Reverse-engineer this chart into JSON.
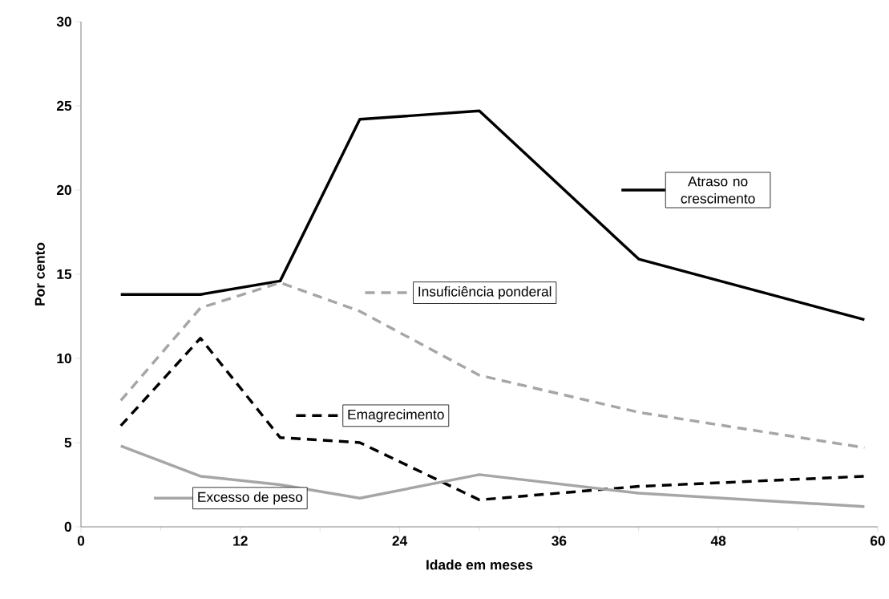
{
  "chart_data": {
    "type": "line",
    "xlabel": "Idade em meses",
    "ylabel": "Por cento",
    "x": [
      3,
      9,
      15,
      21,
      30,
      42,
      59
    ],
    "xlim": [
      0,
      60
    ],
    "xticks": [
      0,
      12,
      24,
      36,
      48,
      60
    ],
    "ylim": [
      0,
      30
    ],
    "yticks": [
      0,
      5,
      10,
      15,
      20,
      25,
      30
    ],
    "grid": false,
    "legend": "center",
    "series": [
      {
        "name": "Atraso no crescimento",
        "color": "#000000",
        "line_style": "solid",
        "values": [
          13.8,
          13.8,
          14.6,
          24.2,
          24.7,
          15.9,
          12.3
        ]
      },
      {
        "name": "Insuficiência ponderal",
        "color": "#a6a6a6",
        "line_style": "dashed",
        "values": [
          7.5,
          13.0,
          14.5,
          12.8,
          9.0,
          6.8,
          4.7
        ]
      },
      {
        "name": "Emagrecimento",
        "color": "#000000",
        "line_style": "dashed",
        "values": [
          6.0,
          11.2,
          5.3,
          5.0,
          1.6,
          2.4,
          3.0
        ]
      },
      {
        "name": "Excesso de peso",
        "color": "#a6a6a6",
        "line_style": "solid",
        "values": [
          4.8,
          3.0,
          2.5,
          1.7,
          3.1,
          2.0,
          1.2
        ]
      }
    ]
  }
}
